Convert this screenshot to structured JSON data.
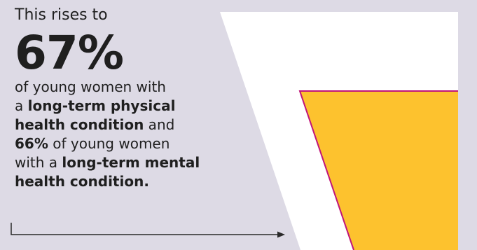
{
  "colors": {
    "background": "#dddae5",
    "panel": "#ffffff",
    "fill": "#fdc22e",
    "fill_outline": "#c0157a",
    "text": "#1f1f1f"
  },
  "intro": "This rises to",
  "big_stat": "67%",
  "lines": [
    {
      "before": "of young women with",
      "bold": "",
      "after": ""
    },
    {
      "before": "a ",
      "bold": "long-term physical",
      "after": ""
    },
    {
      "before": "",
      "bold": "health condition",
      "after": " and"
    },
    {
      "before": "",
      "bold": "66%",
      "after": " of young women"
    },
    {
      "before": "with a ",
      "bold": "long-term mental",
      "after": ""
    },
    {
      "before": "",
      "bold": "health condition.",
      "after": ""
    }
  ],
  "fill_level": 0.67
}
